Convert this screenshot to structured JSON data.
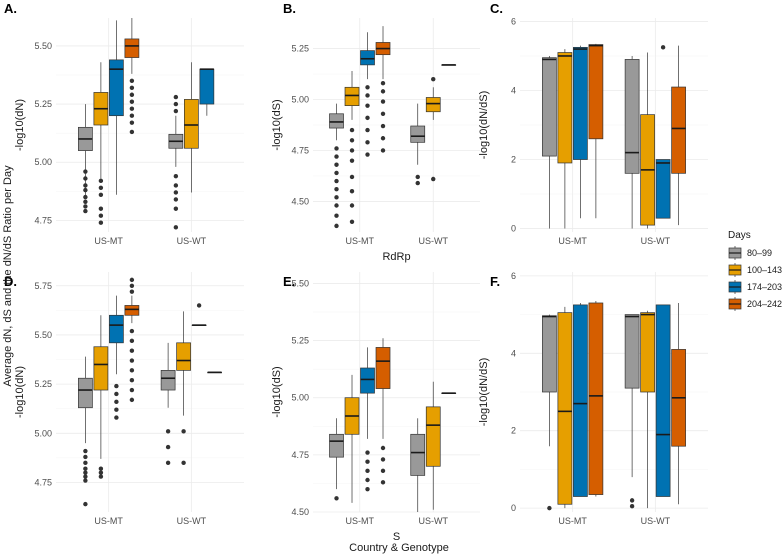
{
  "figure": {
    "ylabel": "Average dN, dS and the dN/dS Ratio per Day",
    "xlabel": "Country & Genotype"
  },
  "legend": {
    "title": "Days",
    "items": [
      {
        "label": "80–99",
        "color": "#999999"
      },
      {
        "label": "100–143",
        "color": "#E69F00"
      },
      {
        "label": "174–203",
        "color": "#0072B2"
      },
      {
        "label": "204–242",
        "color": "#D55E00"
      }
    ]
  },
  "chart_data": [
    {
      "panel": "A.",
      "type": "box",
      "ylabel": "-log10(dN)",
      "xlabel": "",
      "categories": [
        "US-MT",
        "US-WT"
      ],
      "ylim": [
        4.7,
        5.62
      ],
      "yticks": [
        4.75,
        5.0,
        5.25,
        5.5
      ],
      "ytick_labels": [
        "4.75",
        "5.00",
        "5.25",
        "5.50"
      ],
      "groups": [
        {
          "category": "US-MT",
          "boxes": [
            {
              "series": "80–99",
              "whislo": 4.85,
              "q1": 5.05,
              "med": 5.1,
              "q3": 5.15,
              "whishi": 5.25,
              "outliers": [
                4.79,
                4.81,
                4.83,
                4.85,
                4.88,
                4.9,
                4.93,
                4.96
              ]
            },
            {
              "series": "100–143",
              "whislo": 4.93,
              "q1": 5.16,
              "med": 5.23,
              "q3": 5.3,
              "whishi": 5.43,
              "outliers": [
                4.74,
                4.77,
                4.8,
                4.86,
                4.89,
                4.92
              ]
            },
            {
              "series": "174–203",
              "whislo": 4.86,
              "q1": 5.2,
              "med": 5.4,
              "q3": 5.44,
              "whishi": 5.61,
              "outliers": []
            },
            {
              "series": "204–242",
              "whislo": 5.38,
              "q1": 5.45,
              "med": 5.5,
              "q3": 5.53,
              "whishi": 5.62,
              "outliers": [
                5.13,
                5.17,
                5.2,
                5.23,
                5.26,
                5.29,
                5.32,
                5.35
              ]
            }
          ]
        },
        {
          "category": "US-WT",
          "boxes": [
            {
              "series": "80–99",
              "whislo": 4.98,
              "q1": 5.06,
              "med": 5.09,
              "q3": 5.12,
              "whishi": 5.2,
              "outliers": [
                4.72,
                4.8,
                4.84,
                4.87,
                4.9,
                4.94,
                5.22,
                5.25,
                5.28
              ]
            },
            {
              "series": "100–143",
              "whislo": 4.87,
              "q1": 5.06,
              "med": 5.16,
              "q3": 5.27,
              "whishi": 5.43,
              "outliers": []
            },
            {
              "series": "174–203",
              "whislo": 5.2,
              "q1": 5.25,
              "med": 5.4,
              "q3": 5.4,
              "whishi": 5.4,
              "outliers": []
            }
          ]
        }
      ]
    },
    {
      "panel": "B.",
      "type": "box",
      "ylabel": "-log10(dS)",
      "xlabel": "RdRp",
      "categories": [
        "US-MT",
        "US-WT"
      ],
      "ylim": [
        4.35,
        5.4
      ],
      "yticks": [
        4.5,
        4.75,
        5.0,
        5.25
      ],
      "ytick_labels": [
        "4.50",
        "4.75",
        "5.00",
        "5.25"
      ],
      "groups": [
        {
          "category": "US-MT",
          "boxes": [
            {
              "series": "80–99",
              "whislo": 4.8,
              "q1": 4.86,
              "med": 4.89,
              "q3": 4.93,
              "whishi": 4.98,
              "outliers": [
                4.38,
                4.43,
                4.48,
                4.52,
                4.56,
                4.6,
                4.64,
                4.68,
                4.72,
                4.76
              ]
            },
            {
              "series": "100–143",
              "whislo": 4.9,
              "q1": 4.97,
              "med": 5.02,
              "q3": 5.06,
              "whishi": 5.14,
              "outliers": [
                4.4,
                4.48,
                4.55,
                4.62,
                4.7,
                4.75,
                4.8,
                4.85
              ]
            },
            {
              "series": "174–203",
              "whislo": 5.1,
              "q1": 5.17,
              "med": 5.2,
              "q3": 5.24,
              "whishi": 5.33,
              "outliers": [
                4.73,
                4.79,
                4.85,
                4.91,
                4.97,
                5.02,
                5.06
              ]
            },
            {
              "series": "204–242",
              "whislo": 5.1,
              "q1": 5.22,
              "med": 5.25,
              "q3": 5.28,
              "whishi": 5.36,
              "outliers": [
                4.75,
                4.81,
                4.87,
                4.93,
                4.99,
                5.04,
                5.08
              ]
            }
          ]
        },
        {
          "category": "US-WT",
          "boxes": [
            {
              "series": "80–99",
              "whislo": 4.68,
              "q1": 4.79,
              "med": 4.82,
              "q3": 4.87,
              "whishi": 4.98,
              "outliers": [
                4.59,
                4.62
              ]
            },
            {
              "series": "100–143",
              "whislo": 4.9,
              "q1": 4.94,
              "med": 4.98,
              "q3": 5.01,
              "whishi": 5.06,
              "outliers": [
                4.61,
                5.1
              ]
            },
            {
              "series": "174–203",
              "whislo": 5.17,
              "q1": 5.17,
              "med": 5.17,
              "q3": 5.17,
              "whishi": 5.17,
              "outliers": []
            }
          ]
        }
      ]
    },
    {
      "panel": "C.",
      "type": "box",
      "ylabel": "-log10(dN/dS)",
      "xlabel": "",
      "categories": [
        "US-MT",
        "US-WT"
      ],
      "ylim": [
        -0.1,
        6.1
      ],
      "yticks": [
        0,
        2,
        4,
        6
      ],
      "ytick_labels": [
        "0",
        "2",
        "4",
        "6"
      ],
      "groups": [
        {
          "category": "US-MT",
          "boxes": [
            {
              "series": "80–99",
              "whislo": 0,
              "q1": 2.1,
              "med": 4.9,
              "q3": 4.95,
              "whishi": 5.0,
              "outliers": []
            },
            {
              "series": "100–143",
              "whislo": 0,
              "q1": 1.9,
              "med": 5.0,
              "q3": 5.1,
              "whishi": 5.2,
              "outliers": []
            },
            {
              "series": "174–203",
              "whislo": 0.3,
              "q1": 2.0,
              "med": 5.2,
              "q3": 5.25,
              "whishi": 5.3,
              "outliers": []
            },
            {
              "series": "204–242",
              "whislo": 0.3,
              "q1": 2.6,
              "med": 5.3,
              "q3": 5.33,
              "whishi": 5.35,
              "outliers": []
            }
          ]
        },
        {
          "category": "US-WT",
          "boxes": [
            {
              "series": "80–99",
              "whislo": 0,
              "q1": 1.6,
              "med": 2.2,
              "q3": 4.9,
              "whishi": 5.0,
              "outliers": []
            },
            {
              "series": "100–143",
              "whislo": 0,
              "q1": 0.1,
              "med": 1.7,
              "q3": 3.3,
              "whishi": 5.1,
              "outliers": []
            },
            {
              "series": "174–203",
              "whislo": 0.3,
              "q1": 0.3,
              "med": 1.9,
              "q3": 2.0,
              "whishi": 2.0,
              "outliers": [
                5.25
              ]
            },
            {
              "series": "204–242",
              "whislo": 0.1,
              "q1": 1.6,
              "med": 2.9,
              "q3": 4.1,
              "whishi": 5.3,
              "outliers": []
            }
          ]
        }
      ]
    },
    {
      "panel": "D.",
      "type": "box",
      "ylabel": "-log10(dN)",
      "xlabel": "",
      "categories": [
        "US-MT",
        "US-WT"
      ],
      "ylim": [
        4.6,
        5.82
      ],
      "yticks": [
        4.75,
        5.0,
        5.25,
        5.5,
        5.75
      ],
      "ytick_labels": [
        "4.75",
        "5.00",
        "5.25",
        "5.50",
        "5.75"
      ],
      "groups": [
        {
          "category": "US-MT",
          "boxes": [
            {
              "series": "80–99",
              "whislo": 4.95,
              "q1": 5.13,
              "med": 5.22,
              "q3": 5.28,
              "whishi": 5.39,
              "outliers": [
                4.64,
                4.76,
                4.78,
                4.8,
                4.82,
                4.85,
                4.88,
                4.91
              ]
            },
            {
              "series": "100–143",
              "whislo": 4.87,
              "q1": 5.22,
              "med": 5.35,
              "q3": 5.44,
              "whishi": 5.6,
              "outliers": [
                4.78,
                4.8,
                4.82
              ]
            },
            {
              "series": "174–203",
              "whislo": 5.3,
              "q1": 5.46,
              "med": 5.55,
              "q3": 5.6,
              "whishi": 5.7,
              "outliers": [
                5.08,
                5.12,
                5.16,
                5.2,
                5.24
              ]
            },
            {
              "series": "204–242",
              "whislo": 5.56,
              "q1": 5.6,
              "med": 5.63,
              "q3": 5.65,
              "whishi": 5.7,
              "outliers": [
                5.17,
                5.22,
                5.27,
                5.32,
                5.37,
                5.42,
                5.47,
                5.52,
                5.72,
                5.75,
                5.78
              ]
            }
          ]
        },
        {
          "category": "US-WT",
          "boxes": [
            {
              "series": "80–99",
              "whislo": 5.13,
              "q1": 5.22,
              "med": 5.28,
              "q3": 5.32,
              "whishi": 5.46,
              "outliers": [
                4.85,
                4.93,
                5.01
              ]
            },
            {
              "series": "100–143",
              "whislo": 5.09,
              "q1": 5.32,
              "med": 5.37,
              "q3": 5.46,
              "whishi": 5.62,
              "outliers": [
                4.85,
                5.01
              ]
            },
            {
              "series": "174–203",
              "whislo": 5.55,
              "q1": 5.55,
              "med": 5.55,
              "q3": 5.55,
              "whishi": 5.55,
              "outliers": [
                5.65
              ]
            },
            {
              "series": "204–242",
              "whislo": 5.31,
              "q1": 5.31,
              "med": 5.31,
              "q3": 5.31,
              "whishi": 5.31,
              "outliers": []
            }
          ]
        }
      ]
    },
    {
      "panel": "E.",
      "type": "box",
      "ylabel": "-log10(dS)",
      "xlabel": "S",
      "categories": [
        "US-MT",
        "US-WT"
      ],
      "ylim": [
        4.5,
        5.55
      ],
      "yticks": [
        4.5,
        4.75,
        5.0,
        5.25,
        5.5
      ],
      "ytick_labels": [
        "4.50",
        "4.75",
        "5.00",
        "5.25",
        "5.50"
      ],
      "groups": [
        {
          "category": "US-MT",
          "boxes": [
            {
              "series": "80–99",
              "whislo": 4.6,
              "q1": 4.74,
              "med": 4.81,
              "q3": 4.84,
              "whishi": 4.91,
              "outliers": [
                4.56
              ]
            },
            {
              "series": "100–143",
              "whislo": 4.54,
              "q1": 4.84,
              "med": 4.92,
              "q3": 5.0,
              "whishi": 5.1,
              "outliers": []
            },
            {
              "series": "174–203",
              "whislo": 4.82,
              "q1": 5.02,
              "med": 5.08,
              "q3": 5.13,
              "whishi": 5.22,
              "outliers": [
                4.6,
                4.64,
                4.68,
                4.72,
                4.76
              ]
            },
            {
              "series": "204–242",
              "whislo": 4.82,
              "q1": 5.04,
              "med": 5.16,
              "q3": 5.22,
              "whishi": 5.26,
              "outliers": [
                4.63,
                4.68,
                4.73,
                4.78
              ]
            }
          ]
        },
        {
          "category": "US-WT",
          "boxes": [
            {
              "series": "80–99",
              "whislo": 4.5,
              "q1": 4.66,
              "med": 4.76,
              "q3": 4.84,
              "whishi": 4.91,
              "outliers": []
            },
            {
              "series": "100–143",
              "whislo": 4.51,
              "q1": 4.7,
              "med": 4.88,
              "q3": 4.96,
              "whishi": 5.07,
              "outliers": []
            },
            {
              "series": "174–203",
              "whislo": 5.02,
              "q1": 5.02,
              "med": 5.02,
              "q3": 5.02,
              "whishi": 5.02,
              "outliers": []
            }
          ]
        }
      ]
    },
    {
      "panel": "F.",
      "type": "box",
      "ylabel": "-log10(dN/dS)",
      "xlabel": "",
      "categories": [
        "US-MT",
        "US-WT"
      ],
      "ylim": [
        -0.1,
        6.1
      ],
      "yticks": [
        0,
        2,
        4,
        6
      ],
      "ytick_labels": [
        "0",
        "2",
        "4",
        "6"
      ],
      "groups": [
        {
          "category": "US-MT",
          "boxes": [
            {
              "series": "80–99",
              "whislo": 1.6,
              "q1": 3.0,
              "med": 4.95,
              "q3": 4.97,
              "whishi": 5.0,
              "outliers": [
                0
              ]
            },
            {
              "series": "100–143",
              "whislo": 0,
              "q1": 0.1,
              "med": 2.5,
              "q3": 5.05,
              "whishi": 5.2,
              "outliers": []
            },
            {
              "series": "174–203",
              "whislo": 0.3,
              "q1": 0.3,
              "med": 2.7,
              "q3": 5.25,
              "whishi": 5.3,
              "outliers": []
            },
            {
              "series": "204–242",
              "whislo": 0.3,
              "q1": 0.35,
              "med": 2.9,
              "q3": 5.3,
              "whishi": 5.35,
              "outliers": []
            }
          ]
        },
        {
          "category": "US-WT",
          "boxes": [
            {
              "series": "80–99",
              "whislo": 0.8,
              "q1": 3.1,
              "med": 4.95,
              "q3": 5.0,
              "whishi": 5.0,
              "outliers": [
                0.05,
                0.2
              ]
            },
            {
              "series": "100–143",
              "whislo": 0,
              "q1": 3.0,
              "med": 5.0,
              "q3": 5.05,
              "whishi": 5.1,
              "outliers": []
            },
            {
              "series": "174–203",
              "whislo": 0.3,
              "q1": 0.3,
              "med": 1.9,
              "q3": 5.25,
              "whishi": 5.25,
              "outliers": []
            },
            {
              "series": "204–242",
              "whislo": 0.1,
              "q1": 1.6,
              "med": 2.85,
              "q3": 4.1,
              "whishi": 5.3,
              "outliers": []
            }
          ]
        }
      ]
    }
  ]
}
